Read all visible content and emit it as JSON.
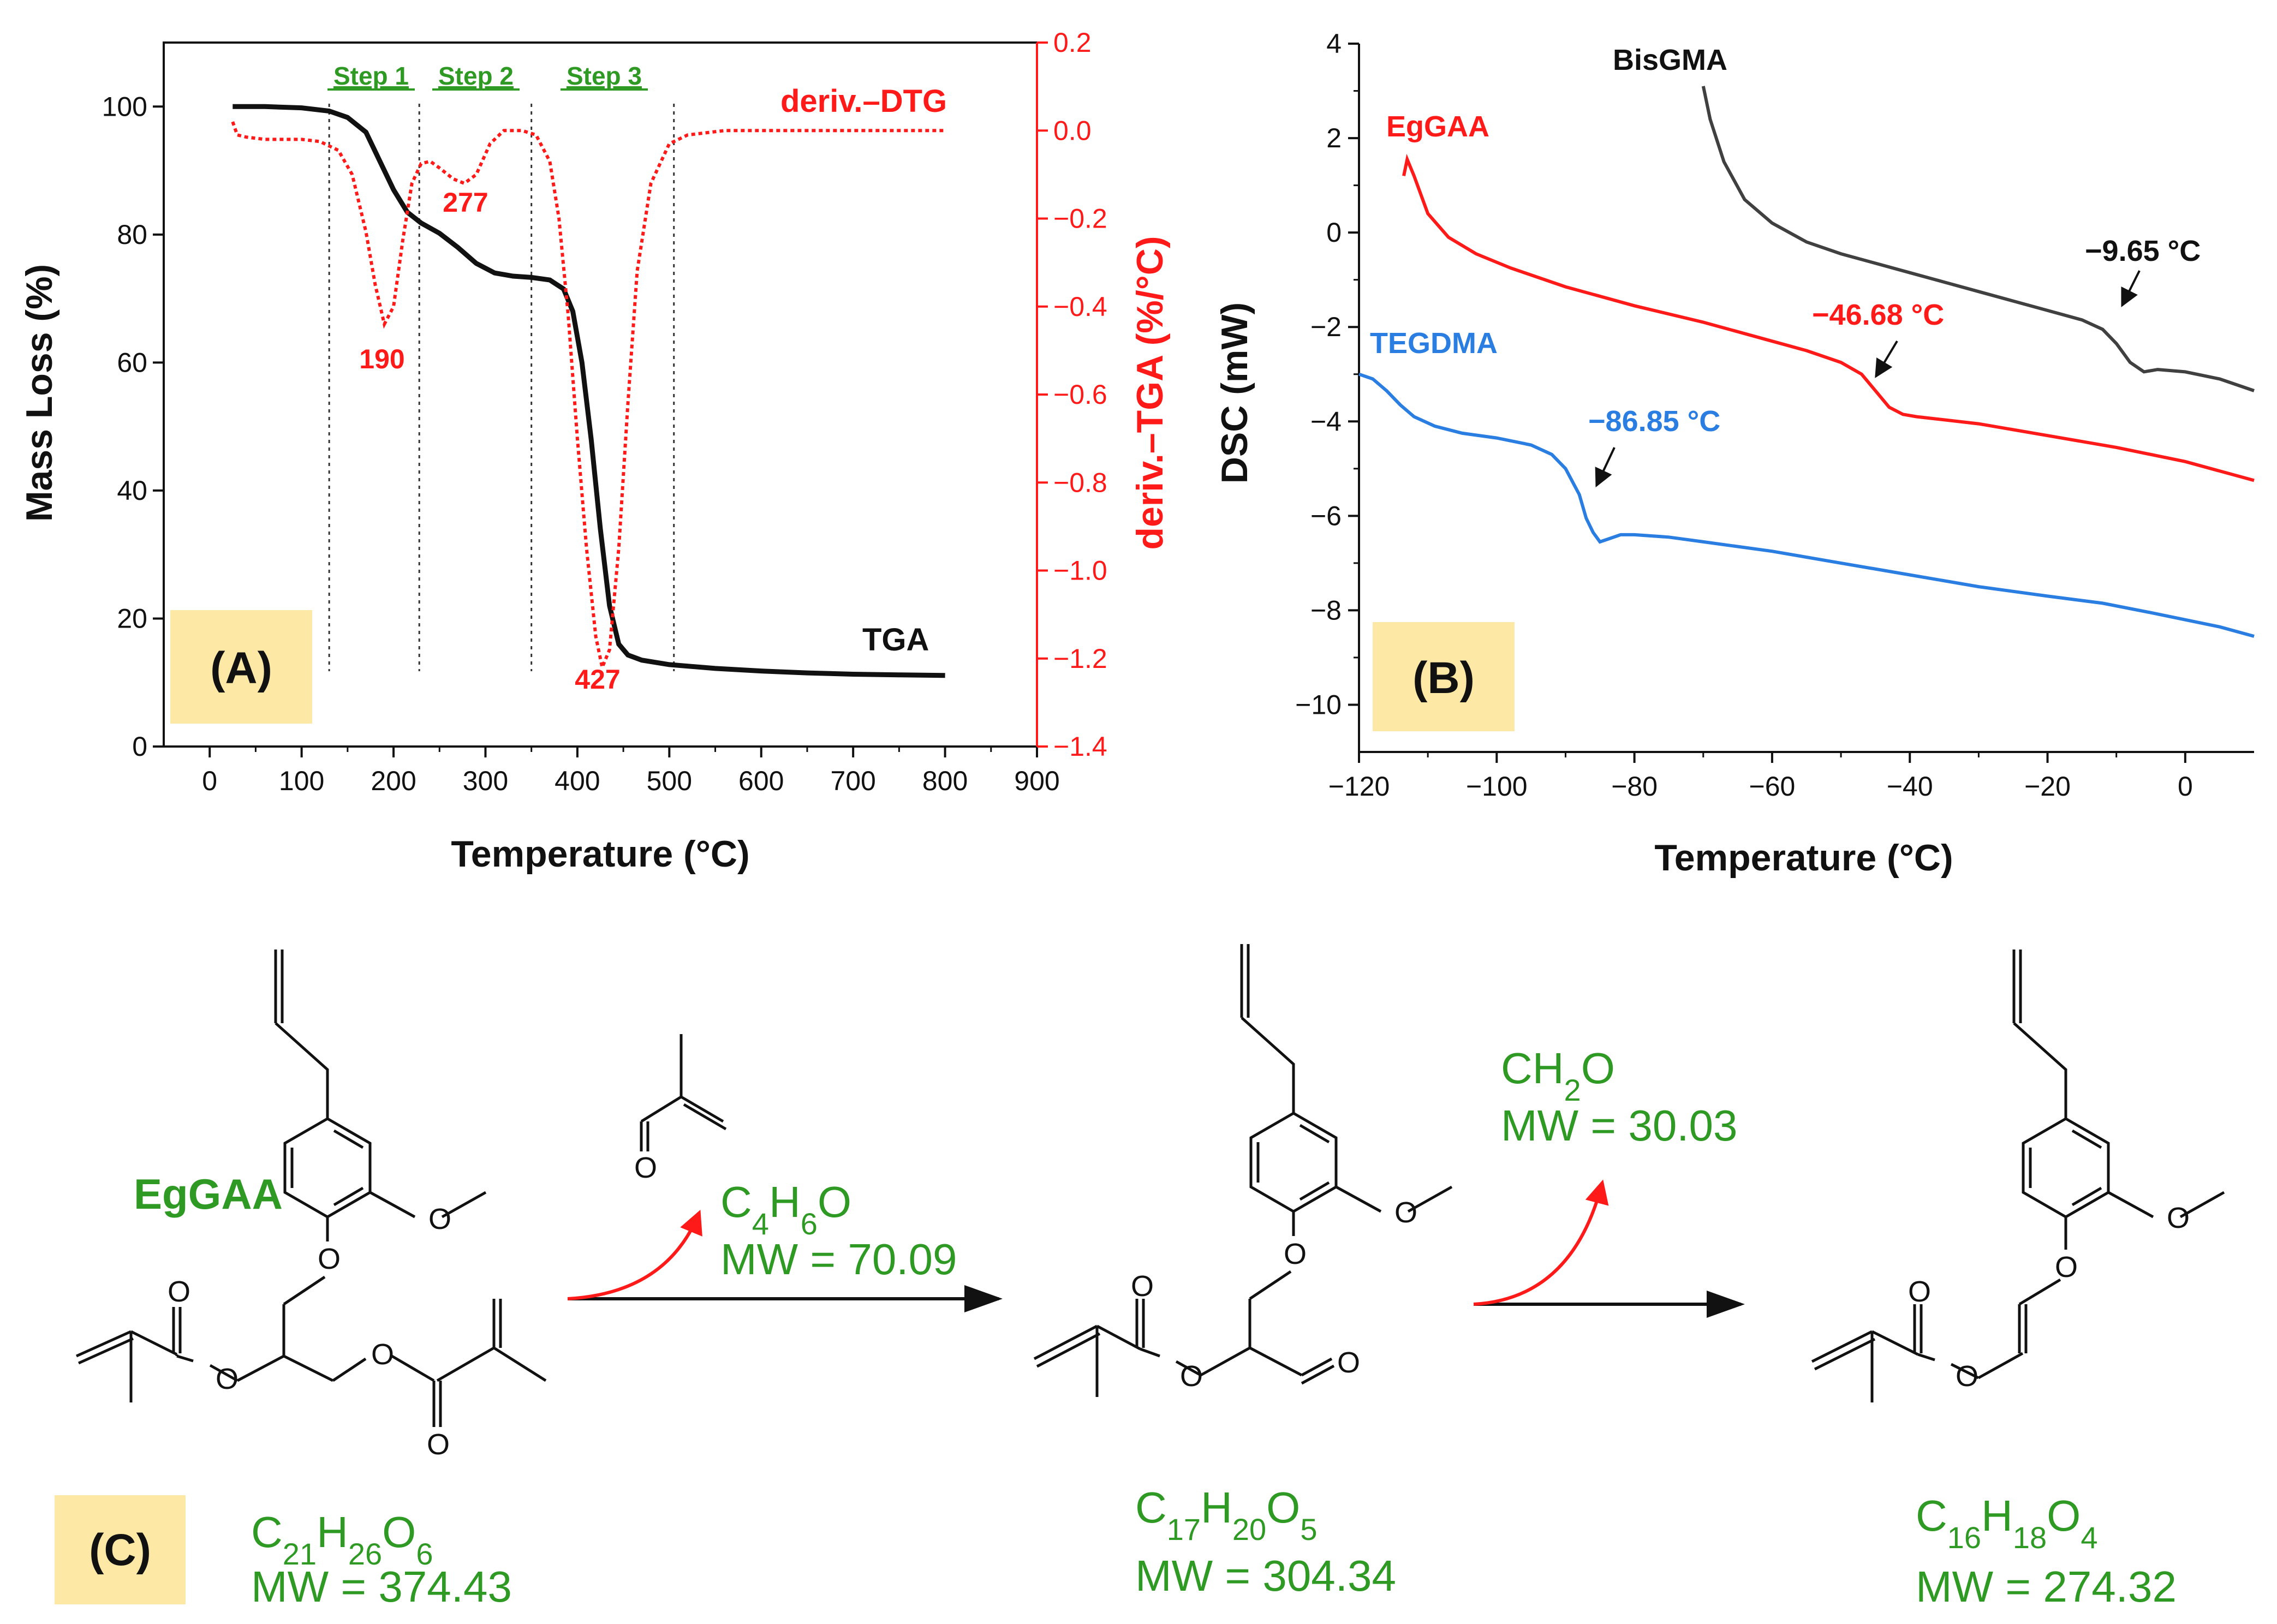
{
  "colors": {
    "black": "#111111",
    "red": "#ff1a1a",
    "blue": "#2a7de1",
    "gray": "#404040",
    "green": "#2e9a24",
    "highlight": "#fde8a6"
  },
  "panel_a": {
    "label": "(A)",
    "steps": [
      "Step 1",
      "Step 2",
      "Step 3"
    ],
    "step_boundaries": [
      130,
      228,
      350,
      505
    ],
    "peak_labels": [
      "190",
      "277",
      "427"
    ],
    "tga_label": "TGA",
    "dtg_label": "deriv.–DTG"
  },
  "panel_b": {
    "label": "(B)",
    "curve_labels": [
      "BisGMA",
      "EgGAA",
      "TEGDMA"
    ],
    "tg_labels": [
      "−9.65 °C",
      "−46.68 °C",
      "−86.85 °C"
    ]
  },
  "chart_data": [
    {
      "type": "line",
      "title": "",
      "xlabel": "Temperature (°C)",
      "ylabel": "Mass Loss (%)",
      "y2label": "deriv.–TGA (%/°C)",
      "xlim": [
        -50,
        900
      ],
      "ylim": [
        0,
        110
      ],
      "y2lim": [
        -1.4,
        0.2
      ],
      "xticks": [
        0,
        100,
        200,
        300,
        400,
        500,
        600,
        700,
        800,
        900
      ],
      "yticks": [
        0,
        20,
        40,
        60,
        80,
        100
      ],
      "y2ticks": [
        0.2,
        0.0,
        -0.2,
        -0.4,
        -0.6,
        -0.8,
        -1.0,
        -1.2,
        -1.4
      ],
      "series": [
        {
          "name": "TGA",
          "axis": "left",
          "x": [
            25,
            60,
            100,
            130,
            150,
            170,
            185,
            200,
            215,
            230,
            250,
            270,
            290,
            310,
            330,
            350,
            370,
            385,
            395,
            405,
            415,
            425,
            435,
            445,
            455,
            470,
            500,
            550,
            600,
            650,
            700,
            750,
            800
          ],
          "y": [
            100,
            100,
            99.8,
            99.3,
            98.3,
            96,
            91.5,
            87,
            83.5,
            81.8,
            80.2,
            78,
            75.5,
            74,
            73.5,
            73.3,
            72.9,
            71.5,
            68,
            60,
            48,
            34,
            22,
            16,
            14.3,
            13.5,
            12.8,
            12.2,
            11.8,
            11.5,
            11.3,
            11.2,
            11.1
          ]
        },
        {
          "name": "deriv.–DTG",
          "axis": "right",
          "x": [
            25,
            30,
            40,
            60,
            100,
            120,
            140,
            155,
            170,
            180,
            190,
            200,
            210,
            220,
            230,
            240,
            250,
            265,
            277,
            290,
            305,
            320,
            340,
            355,
            370,
            380,
            390,
            400,
            410,
            420,
            427,
            435,
            445,
            455,
            465,
            480,
            500,
            520,
            560,
            600,
            700,
            800
          ],
          "y": [
            0.02,
            -0.01,
            -0.015,
            -0.02,
            -0.02,
            -0.025,
            -0.045,
            -0.1,
            -0.23,
            -0.35,
            -0.44,
            -0.4,
            -0.25,
            -0.12,
            -0.075,
            -0.07,
            -0.085,
            -0.11,
            -0.12,
            -0.1,
            -0.03,
            0.0,
            0.0,
            -0.01,
            -0.07,
            -0.2,
            -0.42,
            -0.7,
            -0.95,
            -1.15,
            -1.22,
            -1.18,
            -0.95,
            -0.62,
            -0.32,
            -0.12,
            -0.03,
            -0.01,
            0.0,
            0.0,
            0.0,
            0.0
          ]
        }
      ]
    },
    {
      "type": "line",
      "title": "",
      "xlabel": "Temperature (°C)",
      "ylabel": "DSC (mW)",
      "xlim": [
        -120,
        10
      ],
      "ylim": [
        -11,
        4
      ],
      "xticks": [
        -120,
        -100,
        -80,
        -60,
        -40,
        -20,
        0
      ],
      "yticks": [
        4,
        2,
        0,
        -2,
        -4,
        -6,
        -8,
        -10
      ],
      "series": [
        {
          "name": "BisGMA",
          "x": [
            -70,
            -69,
            -67,
            -64,
            -60,
            -55,
            -50,
            -45,
            -40,
            -35,
            -30,
            -25,
            -20,
            -15,
            -12,
            -10,
            -8,
            -6,
            -4,
            0,
            5,
            10
          ],
          "y": [
            3.1,
            2.4,
            1.5,
            0.7,
            0.2,
            -0.2,
            -0.45,
            -0.65,
            -0.85,
            -1.05,
            -1.25,
            -1.45,
            -1.65,
            -1.85,
            -2.05,
            -2.35,
            -2.75,
            -2.95,
            -2.9,
            -2.95,
            -3.1,
            -3.35
          ]
        },
        {
          "name": "EgGAA",
          "x": [
            -113.5,
            -113,
            -112,
            -110,
            -107,
            -103,
            -98,
            -90,
            -80,
            -70,
            -60,
            -55,
            -50,
            -47,
            -45,
            -43,
            -41,
            -39,
            -30,
            -20,
            -10,
            0,
            10
          ],
          "y": [
            1.2,
            1.55,
            1.2,
            0.4,
            -0.1,
            -0.45,
            -0.75,
            -1.15,
            -1.55,
            -1.9,
            -2.3,
            -2.5,
            -2.75,
            -3.0,
            -3.35,
            -3.7,
            -3.85,
            -3.9,
            -4.05,
            -4.3,
            -4.55,
            -4.85,
            -5.25
          ]
        },
        {
          "name": "TEGDMA",
          "x": [
            -120,
            -118,
            -116,
            -114,
            -112,
            -109,
            -105,
            -100,
            -95,
            -92,
            -90,
            -88,
            -87,
            -86,
            -85,
            -84,
            -82,
            -80,
            -75,
            -70,
            -60,
            -50,
            -40,
            -30,
            -20,
            -12,
            -5,
            0,
            5,
            10
          ],
          "y": [
            -3.0,
            -3.1,
            -3.35,
            -3.65,
            -3.9,
            -4.1,
            -4.25,
            -4.35,
            -4.5,
            -4.7,
            -5.0,
            -5.55,
            -6.05,
            -6.35,
            -6.55,
            -6.5,
            -6.4,
            -6.4,
            -6.45,
            -6.55,
            -6.75,
            -7.0,
            -7.25,
            -7.5,
            -7.7,
            -7.85,
            -8.05,
            -8.2,
            -8.35,
            -8.55
          ]
        }
      ]
    }
  ],
  "panel_c": {
    "label": "(C)",
    "compound_name": "EgGAA",
    "start": {
      "formula": [
        [
          "C",
          "21"
        ],
        [
          "H",
          "26"
        ],
        [
          "O",
          "6"
        ]
      ],
      "mw": "MW = 374.43"
    },
    "loss1": {
      "formula": [
        [
          "C",
          "4"
        ],
        [
          "H",
          "6"
        ],
        [
          "O",
          ""
        ]
      ],
      "mw": "MW = 70.09"
    },
    "mid": {
      "formula": [
        [
          "C",
          "17"
        ],
        [
          "H",
          "20"
        ],
        [
          "O",
          "5"
        ]
      ],
      "mw": "MW = 304.34"
    },
    "loss2": {
      "formula": [
        [
          "CH",
          "2"
        ],
        [
          "O",
          ""
        ]
      ],
      "mw": "MW = 30.03"
    },
    "end": {
      "formula": [
        [
          "C",
          "16"
        ],
        [
          "H",
          "18"
        ],
        [
          "O",
          "4"
        ]
      ],
      "mw": "MW = 274.32"
    },
    "atom_O": "O"
  }
}
